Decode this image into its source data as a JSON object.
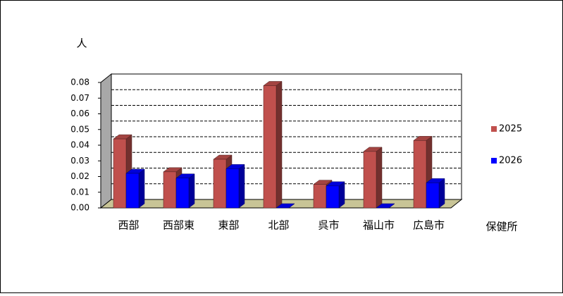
{
  "chart_data": {
    "type": "bar3d",
    "y_label": "人",
    "x_label": "保健所",
    "categories": [
      "西部",
      "西部東",
      "東部",
      "北部",
      "呉市",
      "福山市",
      "広島市"
    ],
    "series": [
      {
        "name": "2025",
        "color": "#c0504d",
        "values": [
          0.044,
          0.023,
          0.031,
          0.078,
          0.015,
          0.036,
          0.043
        ]
      },
      {
        "name": "2026",
        "color": "#0000ff",
        "values": [
          0.022,
          0.019,
          0.025,
          0,
          0.014,
          0,
          0.016
        ]
      }
    ],
    "ylim": [
      0,
      0.08
    ],
    "yticks": [
      {
        "value": 0,
        "label": "0.00"
      },
      0.01,
      0.02,
      0.03,
      0.04,
      0.05,
      0.06,
      0.07,
      0.08
    ],
    "grid": true,
    "legend": "right"
  }
}
